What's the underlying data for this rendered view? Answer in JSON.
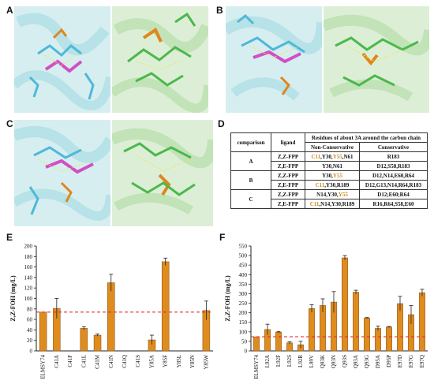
{
  "panels": {
    "A": "A",
    "B": "B",
    "C": "C",
    "D": "D",
    "E": "E",
    "F": "F"
  },
  "table": {
    "header_comparison": "comparison",
    "header_ligand": "ligand",
    "header_residues": "Residues of about 3A around the carbon chain",
    "header_nonconservative": "Non-Conservative",
    "header_conservative": "Conservative",
    "groups": [
      {
        "label": "A",
        "rows": [
          {
            "ligand": "Z,Z-FPP",
            "nc_prefix": "",
            "nc_orange1": "C11",
            "nc_mid": ",Y30,",
            "nc_orange2": "Y55",
            "nc_suffix": ",N61",
            "cons": "R183"
          },
          {
            "ligand": "Z,E-FPP",
            "nc_prefix": "Y30,N61",
            "nc_orange1": "",
            "nc_mid": "",
            "nc_orange2": "",
            "nc_suffix": "",
            "cons": "D12,S58,R183"
          }
        ]
      },
      {
        "label": "B",
        "rows": [
          {
            "ligand": "Z,Z-FPP",
            "nc_prefix": "Y30,",
            "nc_orange1": "",
            "nc_mid": "",
            "nc_orange2": "Y55",
            "nc_suffix": "",
            "cons": "D12,N14,E60,R64"
          },
          {
            "ligand": "Z,E-FPP",
            "nc_prefix": "",
            "nc_orange1": "C11",
            "nc_mid": ",Y30,R189",
            "nc_orange2": "",
            "nc_suffix": "",
            "cons": "D12,G13,N14,R64,R183"
          }
        ]
      },
      {
        "label": "C",
        "rows": [
          {
            "ligand": "Z,Z-FPP",
            "nc_prefix": "N14,Y30,",
            "nc_orange1": "",
            "nc_mid": "",
            "nc_orange2": "Y55",
            "nc_suffix": "",
            "cons": "D12;E60;R64"
          },
          {
            "ligand": "Z,E-FPP",
            "nc_prefix": "",
            "nc_orange1": "C11",
            "nc_mid": ",N14,Y30,R189",
            "nc_orange2": "",
            "nc_suffix": "",
            "cons": "R16,R64,S58,E60"
          }
        ]
      }
    ]
  },
  "chart_data": [
    {
      "type": "bar",
      "panel": "E",
      "ylabel": "Z,Z-FOH (mg/L)",
      "ylim": [
        0,
        200
      ],
      "yticks": [
        "0",
        "20",
        "40",
        "60",
        "80",
        "100",
        "120",
        "140",
        "160",
        "180",
        "200"
      ],
      "categories": [
        "ELMSY74",
        "C41A",
        "C41F",
        "C41L",
        "C41M",
        "C41N",
        "C41Q",
        "C41S",
        "Y85A",
        "Y85F",
        "Y85L",
        "Y85N",
        "Y85W"
      ],
      "values": [
        74,
        81,
        0,
        43,
        30,
        130,
        0,
        0,
        21,
        170,
        0,
        0,
        77
      ],
      "errors": [
        0,
        19,
        0,
        3,
        2,
        16,
        0,
        0,
        9,
        7,
        0,
        0,
        18
      ],
      "reference_line": 74,
      "bar_color": "#e08b1e",
      "line_color": "#e0302e"
    },
    {
      "type": "bar",
      "panel": "F",
      "ylabel": "Z,Z-FOH (mg/L)",
      "ylim": [
        0,
        550
      ],
      "yticks": [
        "0",
        "50",
        "100",
        "150",
        "200",
        "250",
        "300",
        "350",
        "400",
        "450",
        "500",
        "550"
      ],
      "categories": [
        "ELMSY74",
        "L92A",
        "L92F",
        "L92S",
        "L92R",
        "L99V",
        "Q93K",
        "Q93N",
        "Q93S",
        "Q93A",
        "Q93G",
        "D95A",
        "D95P",
        "E97D",
        "E97G",
        "E97Q"
      ],
      "values": [
        74,
        112,
        98,
        42,
        32,
        222,
        238,
        256,
        488,
        308,
        172,
        118,
        125,
        248,
        190,
        305
      ],
      "errors": [
        0,
        28,
        4,
        6,
        18,
        20,
        35,
        55,
        12,
        10,
        3,
        12,
        3,
        38,
        48,
        18
      ],
      "reference_line": 74,
      "bar_color": "#e08b1e",
      "line_color": "#e0302e"
    }
  ]
}
